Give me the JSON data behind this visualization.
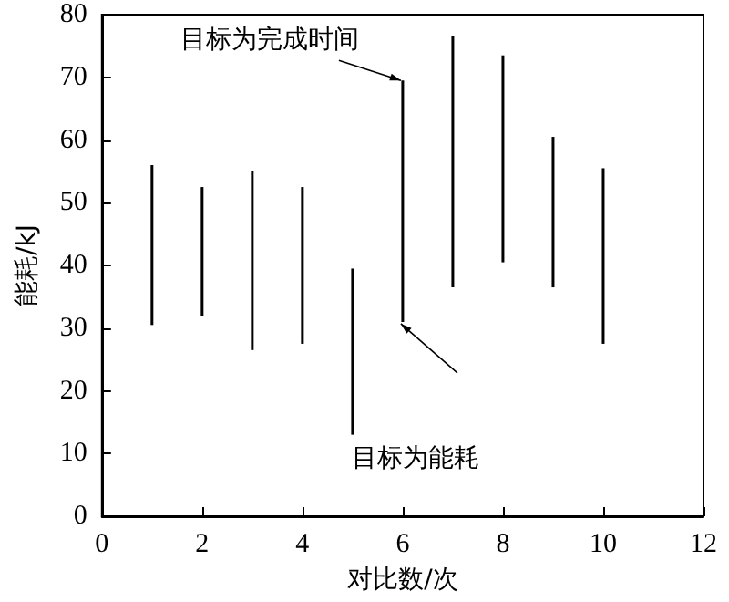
{
  "chart_data": {
    "type": "bar",
    "xlabel": "对比数/次",
    "ylabel": "能耗/kJ",
    "x": [
      1,
      2,
      3,
      4,
      5,
      6,
      7,
      8,
      9,
      10
    ],
    "base": [
      30.5,
      32,
      26.5,
      27.5,
      13,
      31,
      36.5,
      40.5,
      36.5,
      27.5
    ],
    "values": [
      25.5,
      20.5,
      28.5,
      25,
      26.5,
      38.5,
      40,
      33,
      24,
      28
    ],
    "color": "#000000",
    "xlim": [
      0,
      12
    ],
    "xticks": [
      0,
      2,
      4,
      6,
      8,
      10,
      12
    ],
    "ylim": [
      0,
      80
    ],
    "yticks": [
      0,
      10,
      20,
      30,
      40,
      50,
      60,
      70,
      80
    ],
    "grid": false,
    "annotations": [
      "目标为完成时间",
      "目标为能耗"
    ]
  }
}
